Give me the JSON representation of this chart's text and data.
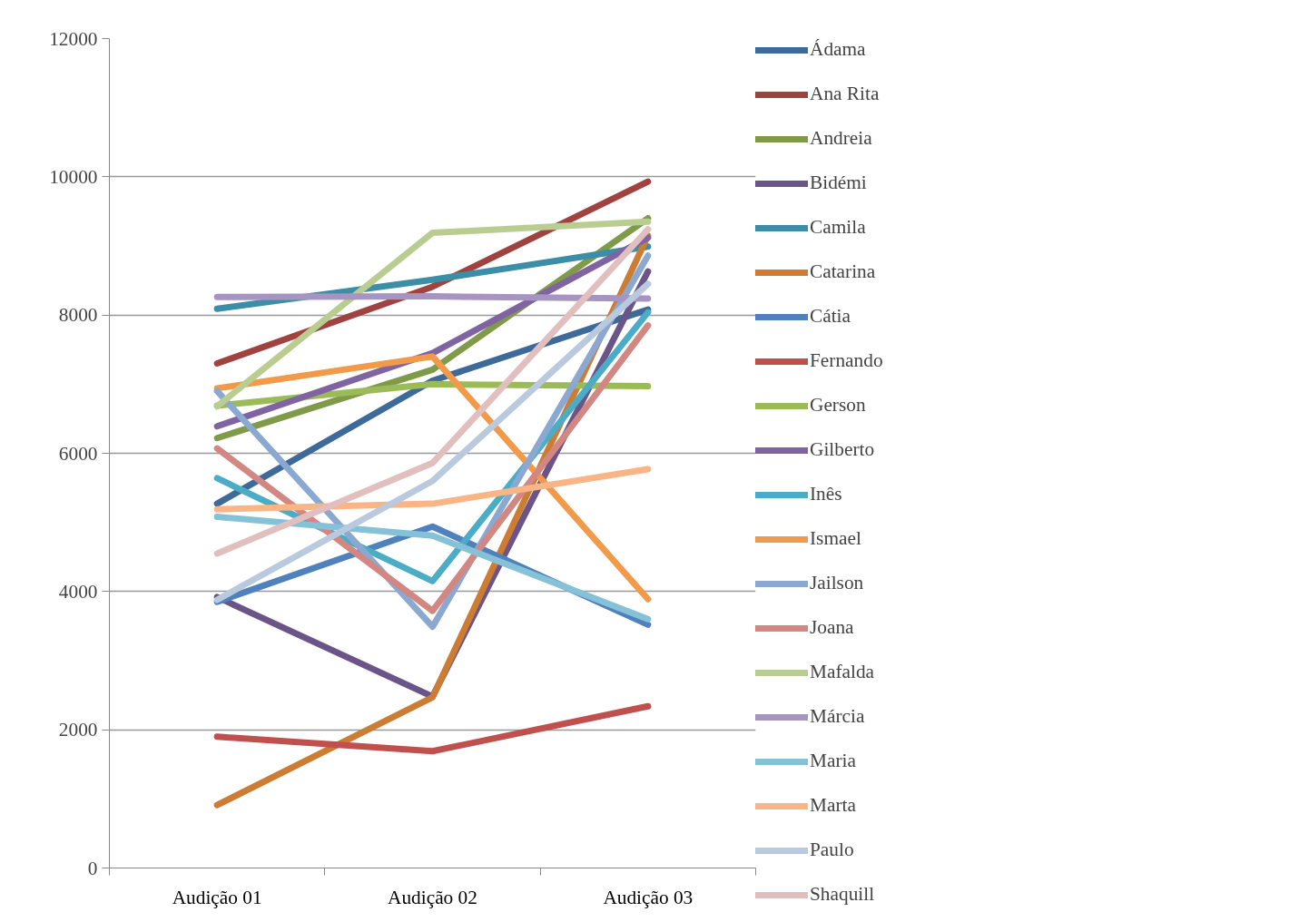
{
  "chart_data": {
    "type": "line",
    "categories": [
      "Audição 01",
      "Audição 02",
      "Audição 03"
    ],
    "ylim": [
      0,
      12000
    ],
    "yticks": [
      0,
      2000,
      4000,
      6000,
      8000,
      10000,
      12000
    ],
    "grid": "y",
    "legend": "right",
    "marker": "none",
    "line_style": "solid",
    "series": [
      {
        "name": "Ádama",
        "color": "#3d6a99",
        "values": [
          5270,
          7050,
          8080
        ]
      },
      {
        "name": "Ana Rita",
        "color": "#a04340",
        "values": [
          7300,
          8410,
          9930
        ]
      },
      {
        "name": "Andreia",
        "color": "#7f9a48",
        "values": [
          6220,
          7210,
          9400
        ]
      },
      {
        "name": "Bidémi",
        "color": "#6a5488",
        "values": [
          3920,
          2480,
          8630
        ]
      },
      {
        "name": "Camila",
        "color": "#3b8ea5",
        "values": [
          8090,
          8510,
          8990
        ]
      },
      {
        "name": "Catarina",
        "color": "#cc7d33",
        "values": [
          910,
          2470,
          9150
        ]
      },
      {
        "name": "Cátia",
        "color": "#4f81bd",
        "values": [
          3850,
          4940,
          3520
        ]
      },
      {
        "name": "Fernando",
        "color": "#c0504d",
        "values": [
          1900,
          1690,
          2340
        ]
      },
      {
        "name": "Gerson",
        "color": "#9bbb59",
        "values": [
          6690,
          7000,
          6970
        ]
      },
      {
        "name": "Gilberto",
        "color": "#8064a2",
        "values": [
          6390,
          7450,
          9120
        ]
      },
      {
        "name": "Inês",
        "color": "#4bacc6",
        "values": [
          5640,
          4150,
          8040
        ]
      },
      {
        "name": "Ismael",
        "color": "#f09a4a",
        "values": [
          6940,
          7400,
          3890
        ]
      },
      {
        "name": "Jailson",
        "color": "#8aa8d0",
        "values": [
          6900,
          3490,
          8860
        ]
      },
      {
        "name": "Joana",
        "color": "#d38783",
        "values": [
          6070,
          3720,
          7850
        ]
      },
      {
        "name": "Mafalda",
        "color": "#b9cd91",
        "values": [
          6680,
          9190,
          9350
        ]
      },
      {
        "name": "Márcia",
        "color": "#a595c0",
        "values": [
          8260,
          8270,
          8240
        ]
      },
      {
        "name": "Maria",
        "color": "#86c2d7",
        "values": [
          5080,
          4810,
          3600
        ]
      },
      {
        "name": "Marta",
        "color": "#f9b585",
        "values": [
          5190,
          5270,
          5770
        ]
      },
      {
        "name": "Paulo",
        "color": "#b9c9de",
        "values": [
          3880,
          5600,
          8450
        ]
      },
      {
        "name": "Shaquill",
        "color": "#e2bfbf",
        "values": [
          4550,
          5860,
          9240
        ]
      }
    ]
  }
}
